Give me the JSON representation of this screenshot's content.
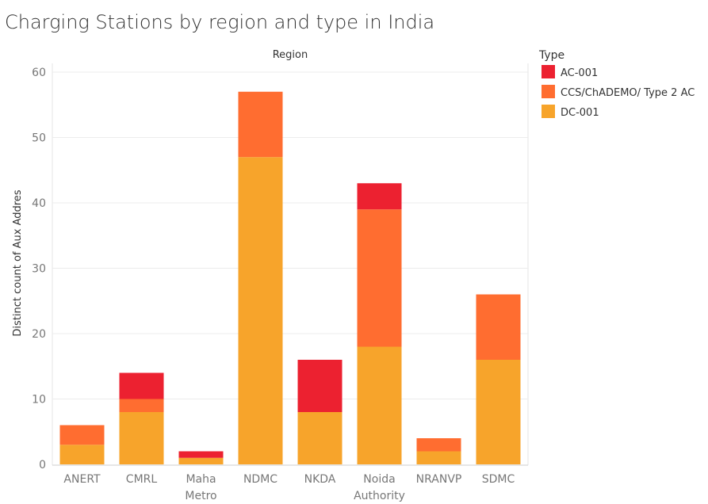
{
  "chart_data": {
    "type": "bar",
    "stacked": true,
    "title": "Charging Stations by region and type in India",
    "column_header": "Region",
    "ylabel": "Distinct count of Aux Addres",
    "ylim": [
      0,
      60
    ],
    "yticks": [
      0,
      10,
      20,
      30,
      40,
      50,
      60
    ],
    "categories": [
      [
        "ANERT"
      ],
      [
        "CMRL"
      ],
      [
        "Maha",
        "Metro"
      ],
      [
        "NDMC"
      ],
      [
        "NKDA"
      ],
      [
        "Noida",
        "Authority"
      ],
      [
        "NRANVP"
      ],
      [
        "SDMC"
      ]
    ],
    "series": [
      {
        "name": "DC-001",
        "color": "#f7a42b",
        "values": [
          3,
          8,
          1,
          47,
          8,
          18,
          2,
          16
        ]
      },
      {
        "name": "CCS/ChADEMO/ Type 2 AC",
        "color": "#ff6d30",
        "values": [
          3,
          2,
          0,
          10,
          0,
          21,
          2,
          10
        ]
      },
      {
        "name": "AC-001",
        "color": "#ec2130",
        "values": [
          0,
          4,
          1,
          0,
          8,
          4,
          0,
          0
        ]
      }
    ],
    "legend": {
      "title": "Type",
      "position": "right",
      "order": [
        "AC-001",
        "CCS/ChADEMO/ Type 2 AC",
        "DC-001"
      ]
    },
    "grid": true
  }
}
